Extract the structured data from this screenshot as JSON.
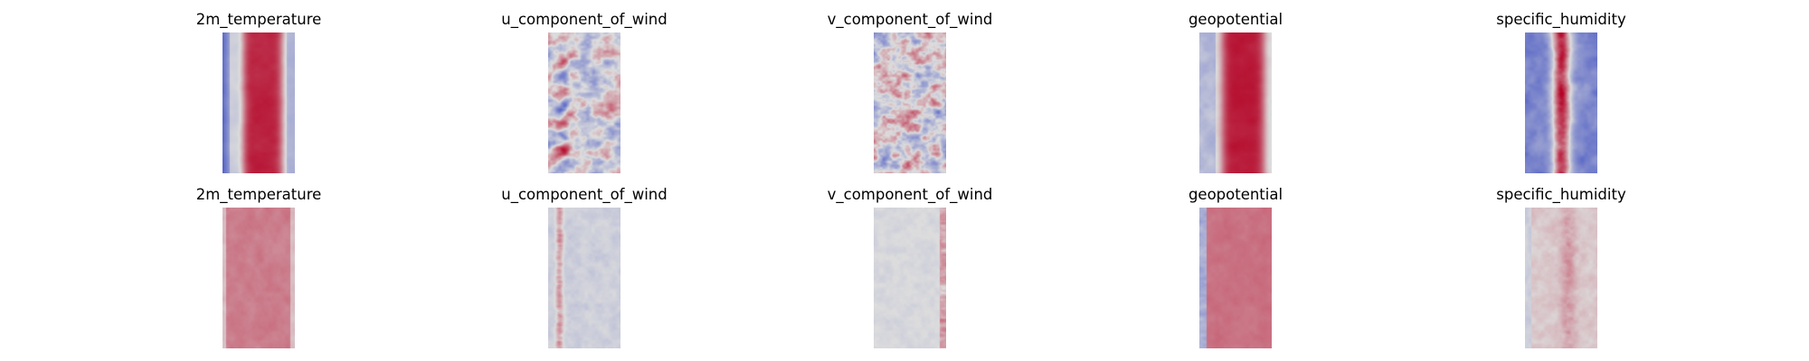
{
  "colors": {
    "background": "#ffffff",
    "cmap_low": "#3b4cc0",
    "cmap_mid": "#dddddd",
    "cmap_high": "#b40426",
    "cmap_name": "coolwarm"
  },
  "chart_data": [
    {
      "type": "heatmap",
      "title": "2m_temperature",
      "row": 1,
      "pattern": "temperature_top"
    },
    {
      "type": "heatmap",
      "title": "u_component_of_wind",
      "row": 1,
      "pattern": "uwind_top"
    },
    {
      "type": "heatmap",
      "title": "v_component_of_wind",
      "row": 1,
      "pattern": "vwind_top"
    },
    {
      "type": "heatmap",
      "title": "geopotential",
      "row": 1,
      "pattern": "geo_top"
    },
    {
      "type": "heatmap",
      "title": "specific_humidity",
      "row": 1,
      "pattern": "humid_top"
    },
    {
      "type": "heatmap",
      "title": "2m_temperature",
      "row": 2,
      "pattern": "temperature_bottom"
    },
    {
      "type": "heatmap",
      "title": "u_component_of_wind",
      "row": 2,
      "pattern": "uwind_bottom"
    },
    {
      "type": "heatmap",
      "title": "v_component_of_wind",
      "row": 2,
      "pattern": "vwind_bottom"
    },
    {
      "type": "heatmap",
      "title": "geopotential",
      "row": 2,
      "pattern": "geo_bottom"
    },
    {
      "type": "heatmap",
      "title": "specific_humidity",
      "row": 2,
      "pattern": "humid_bottom"
    }
  ]
}
